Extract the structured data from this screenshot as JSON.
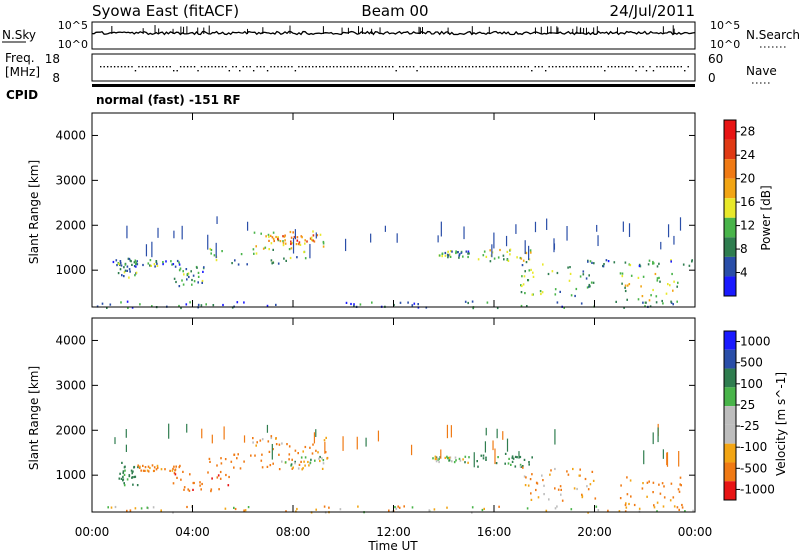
{
  "header": {
    "station": "Syowa East (fitACF)",
    "beam": "Beam 00",
    "date": "24/Jul/2011"
  },
  "noise_panel": {
    "left_label": "N.Sky",
    "left_ticks": [
      "10^5",
      "10^0"
    ],
    "right_label": "N.Search",
    "right_ticks": [
      "10^5",
      "10^0"
    ]
  },
  "freq_panel": {
    "left_label_1": "Freq.",
    "left_label_2": "[MHz]",
    "left_ticks": [
      "18",
      "8"
    ],
    "right_label": "Nave",
    "right_ticks": [
      "60",
      "0"
    ]
  },
  "cpid": {
    "label": "CPID",
    "value": "normal (fast) -151 RF"
  },
  "x_axis": {
    "label": "Time UT",
    "ticks": [
      "00:00",
      "04:00",
      "08:00",
      "12:00",
      "16:00",
      "20:00",
      "00:00"
    ]
  },
  "colors": {
    "power": [
      "#1a1aff",
      "#2a4ea8",
      "#2f7d4f",
      "#49b44a",
      "#e8e82a",
      "#f2a514",
      "#f07a14",
      "#e03a14",
      "#e81414"
    ],
    "velocity": [
      "#e81414",
      "#f07a14",
      "#f2a514",
      "#bdbdbd",
      "#bdbdbd",
      "#49b44a",
      "#2f7d4f",
      "#2a4ea8",
      "#1a1aff"
    ]
  },
  "chart_data": [
    {
      "type": "heatmap",
      "panel": "power",
      "ylabel": "Slant Range [km]",
      "y_ticks": [
        "1000",
        "2000",
        "3000",
        "4000"
      ],
      "ylim": [
        180,
        4500
      ],
      "xlim_hours": [
        0,
        24
      ],
      "colorbar": {
        "label": "Power [dB]",
        "ticks": [
          "4",
          "8",
          "12",
          "16",
          "20",
          "24",
          "28"
        ],
        "range": [
          0,
          30
        ]
      },
      "echo_regions": [
        {
          "t0": 0.8,
          "t1": 3.5,
          "r0": 1100,
          "r1": 1250,
          "v": 8
        },
        {
          "t0": 1.0,
          "t1": 1.8,
          "r0": 800,
          "r1": 1300,
          "v": 10
        },
        {
          "t0": 3.2,
          "t1": 4.5,
          "r0": 650,
          "r1": 1100,
          "v": 9
        },
        {
          "t0": 4.5,
          "t1": 8.5,
          "r0": 1150,
          "r1": 1500,
          "v": 11
        },
        {
          "t0": 6.3,
          "t1": 9.3,
          "r0": 1500,
          "r1": 1900,
          "v": 16
        },
        {
          "t0": 7.0,
          "t1": 9.0,
          "r0": 1600,
          "r1": 1800,
          "v": 22
        },
        {
          "t0": 13.5,
          "t1": 15.0,
          "r0": 1300,
          "r1": 1450,
          "v": 9
        },
        {
          "t0": 15.3,
          "t1": 17.5,
          "r0": 1200,
          "r1": 1500,
          "v": 14
        },
        {
          "t0": 17.0,
          "t1": 20.0,
          "r0": 450,
          "r1": 1200,
          "v": 11
        },
        {
          "t0": 19.5,
          "t1": 24.0,
          "r0": 1100,
          "r1": 1250,
          "v": 8
        },
        {
          "t0": 21.0,
          "t1": 23.5,
          "r0": 300,
          "r1": 1000,
          "v": 13
        },
        {
          "t0": 0.0,
          "t1": 24.0,
          "r0": 180,
          "r1": 330,
          "v": 7
        }
      ]
    },
    {
      "type": "heatmap",
      "panel": "velocity",
      "ylabel": "Slant Range [km]",
      "y_ticks": [
        "1000",
        "2000",
        "3000",
        "4000"
      ],
      "ylim": [
        180,
        4500
      ],
      "xlim_hours": [
        0,
        24
      ],
      "colorbar": {
        "label": "Velocity [m s^-1]",
        "ticks": [
          "1000",
          "500",
          "100",
          "25",
          "-25",
          "-100",
          "-500",
          "-1000"
        ]
      },
      "echo_regions": [
        {
          "t0": 1.0,
          "t1": 1.8,
          "r0": 800,
          "r1": 1300,
          "v": 200
        },
        {
          "t0": 1.8,
          "t1": 3.5,
          "r0": 1100,
          "r1": 1250,
          "v": -150
        },
        {
          "t0": 3.2,
          "t1": 5.5,
          "r0": 650,
          "r1": 1100,
          "v": -400
        },
        {
          "t0": 4.5,
          "t1": 8.5,
          "r0": 1150,
          "r1": 1500,
          "v": -300
        },
        {
          "t0": 7.5,
          "t1": 9.5,
          "r0": 1150,
          "r1": 1450,
          "v": 0
        },
        {
          "t0": 6.3,
          "t1": 9.3,
          "r0": 1500,
          "r1": 1900,
          "v": -120
        },
        {
          "t0": 13.5,
          "t1": 15.0,
          "r0": 1300,
          "r1": 1450,
          "v": 40
        },
        {
          "t0": 15.3,
          "t1": 17.5,
          "r0": 1200,
          "r1": 1500,
          "v": 150
        },
        {
          "t0": 17.0,
          "t1": 20.0,
          "r0": 450,
          "r1": 1200,
          "v": -120
        },
        {
          "t0": 21.0,
          "t1": 23.5,
          "r0": 300,
          "r1": 1000,
          "v": -200
        },
        {
          "t0": 0.0,
          "t1": 24.0,
          "r0": 180,
          "r1": 330,
          "v": -60
        }
      ]
    }
  ]
}
